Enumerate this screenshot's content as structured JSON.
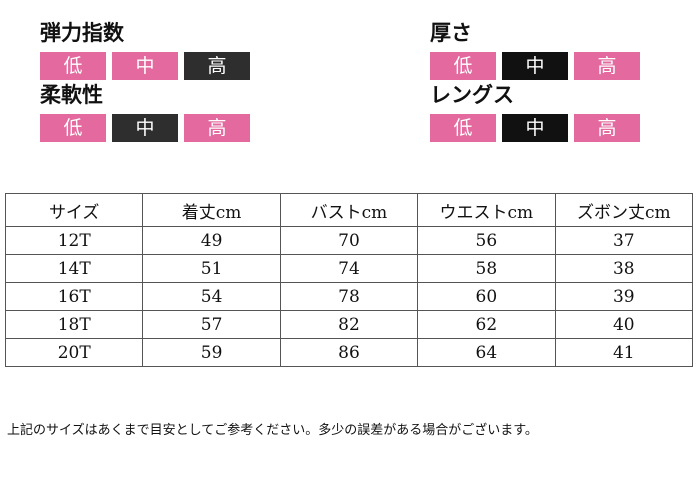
{
  "attributes": {
    "elasticity": {
      "title": "弾力指数",
      "levels": [
        "低",
        "中",
        "高"
      ],
      "selected": "高"
    },
    "thickness": {
      "title": "厚さ",
      "levels": [
        "低",
        "中",
        "高"
      ],
      "selected": "中"
    },
    "softness": {
      "title": "柔軟性",
      "levels": [
        "低",
        "中",
        "高"
      ],
      "selected": "中"
    },
    "length": {
      "title": "レングス",
      "levels": [
        "低",
        "中",
        "高"
      ],
      "selected": "中"
    }
  },
  "colors": {
    "level_normal": "#e3699e",
    "level_selected": "#2e2e2e"
  },
  "size_table": {
    "headers": [
      "サイズ",
      "着丈cm",
      "バストcm",
      "ウエストcm",
      "ズボン丈cm"
    ],
    "rows": [
      [
        "12T",
        "49",
        "70",
        "56",
        "37"
      ],
      [
        "14T",
        "51",
        "74",
        "58",
        "38"
      ],
      [
        "16T",
        "54",
        "78",
        "60",
        "39"
      ],
      [
        "18T",
        "57",
        "82",
        "62",
        "40"
      ],
      [
        "20T",
        "59",
        "86",
        "64",
        "41"
      ]
    ]
  },
  "note": "上記のサイズはあくまで目安としてご参考ください。多少の誤差がある場合がございます。"
}
